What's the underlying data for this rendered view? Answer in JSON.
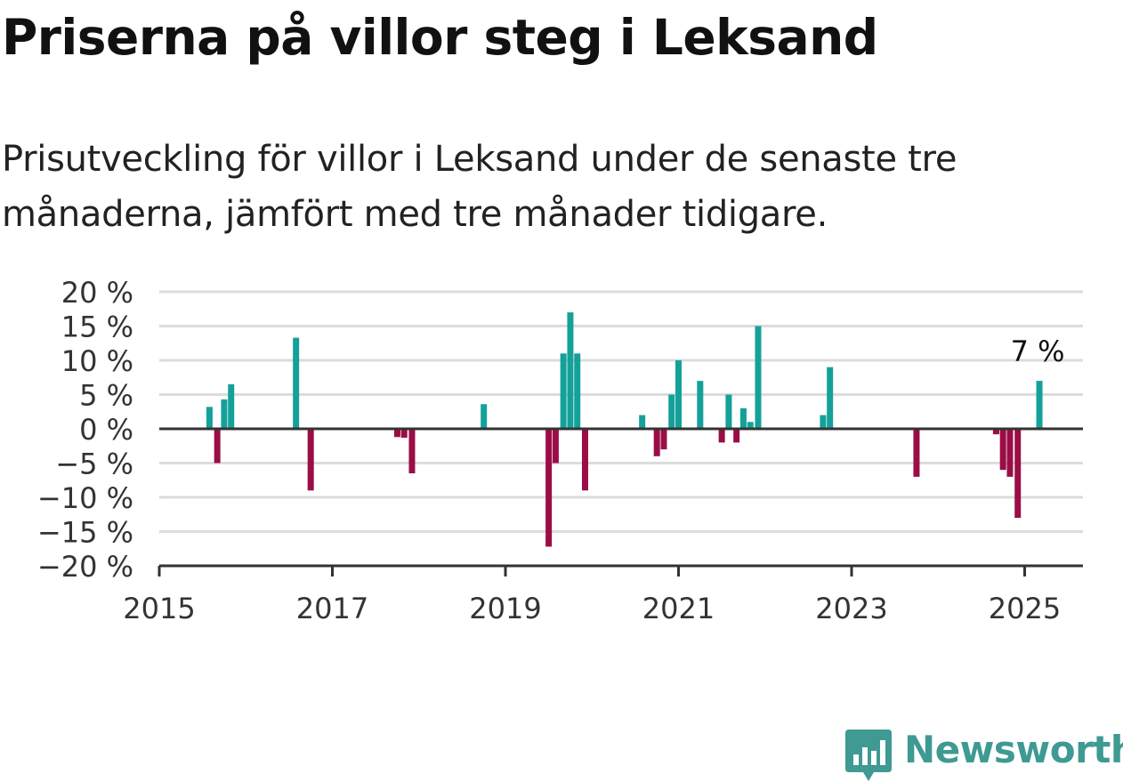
{
  "title": "Priserna på villor steg i Leksand",
  "subtitle": "Prisutveckling för villor i Leksand under de senaste tre månaderna, jämfört med tre månader tidigare.",
  "brand": {
    "name": "Newsworthy",
    "color": "#3e9a93",
    "icon": "newsworthy-chart-bubble-icon"
  },
  "colors": {
    "positive": "#14a19a",
    "negative": "#9b0d47",
    "grid": "#dcdcdc",
    "axis": "#333333"
  },
  "chart_data": {
    "type": "bar",
    "xlabel": "",
    "ylabel": "",
    "ylim": [
      -20,
      20
    ],
    "xlim": [
      2015,
      2025.67
    ],
    "grid": true,
    "yticks": [
      20,
      15,
      10,
      5,
      0,
      -5,
      -10,
      -15,
      -20
    ],
    "ytick_labels": [
      "20 %",
      "15 %",
      "10 %",
      "5 %",
      "0 %",
      "−5 %",
      "−10 %",
      "−15 %",
      "−20 %"
    ],
    "xticks": [
      2015,
      2017,
      2019,
      2021,
      2023,
      2025
    ],
    "xtick_labels": [
      "2015",
      "2017",
      "2019",
      "2021",
      "2023",
      "2025"
    ],
    "annotation": {
      "text": "7 %",
      "x": 2025.17
    },
    "x": [
      2015.58,
      2015.67,
      2015.75,
      2015.83,
      2016.58,
      2016.75,
      2017.75,
      2017.83,
      2017.92,
      2018.75,
      2019.5,
      2019.58,
      2019.67,
      2019.75,
      2019.83,
      2019.92,
      2020.58,
      2020.75,
      2020.83,
      2020.92,
      2021.0,
      2021.25,
      2021.5,
      2021.58,
      2021.67,
      2021.75,
      2021.83,
      2021.92,
      2022.67,
      2022.75,
      2023.75,
      2024.67,
      2024.75,
      2024.83,
      2024.92,
      2025.17
    ],
    "values": [
      3.2,
      -5,
      4.3,
      6.5,
      13.3,
      -9,
      -1.2,
      -1.3,
      -6.5,
      3.6,
      -17.2,
      -5,
      11,
      17,
      11,
      -9,
      2,
      -4,
      -3,
      5,
      10,
      7,
      -2,
      5,
      -2,
      3,
      1,
      15,
      2,
      9,
      -7,
      -0.8,
      -6,
      -7,
      -13,
      7
    ]
  }
}
